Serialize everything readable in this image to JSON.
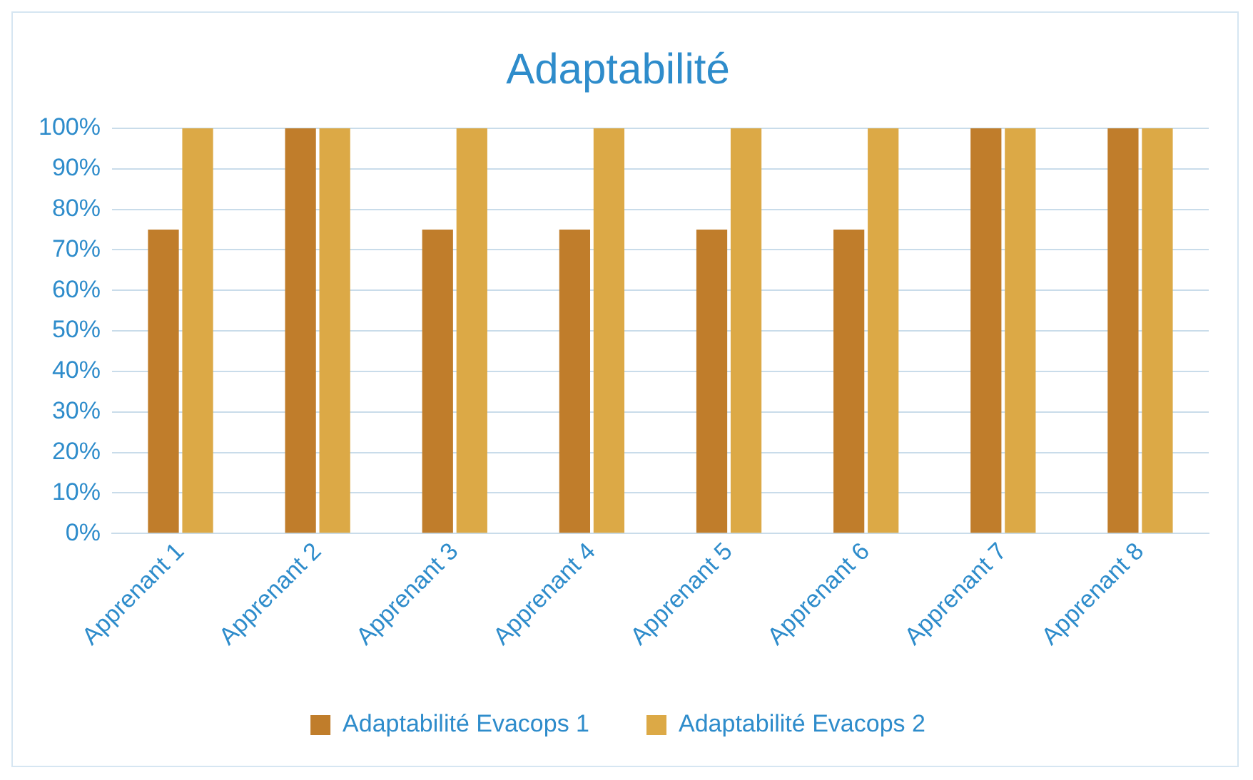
{
  "chart_data": {
    "type": "bar",
    "title": "Adaptabilité",
    "categories": [
      "Apprenant 1",
      "Apprenant 2",
      "Apprenant 3",
      "Apprenant 4",
      "Apprenant 5",
      "Apprenant 6",
      "Apprenant 7",
      "Apprenant 8"
    ],
    "series": [
      {
        "name": "Adaptabilité Evacops 1",
        "color": "#c07d2b",
        "values": [
          75,
          100,
          75,
          75,
          75,
          75,
          100,
          100
        ]
      },
      {
        "name": "Adaptabilité Evacops 2",
        "color": "#dca946",
        "values": [
          100,
          100,
          100,
          100,
          100,
          100,
          100,
          100
        ]
      }
    ],
    "ylim": [
      0,
      100
    ],
    "yticks": [
      {
        "value": 0,
        "label": "0%"
      },
      {
        "value": 10,
        "label": "10%"
      },
      {
        "value": 20,
        "label": "20%"
      },
      {
        "value": 30,
        "label": "30%"
      },
      {
        "value": 40,
        "label": "40%"
      },
      {
        "value": 50,
        "label": "50%"
      },
      {
        "value": 60,
        "label": "60%"
      },
      {
        "value": 70,
        "label": "70%"
      },
      {
        "value": 80,
        "label": "80%"
      },
      {
        "value": 90,
        "label": "90%"
      },
      {
        "value": 100,
        "label": "100%"
      }
    ],
    "grid": "y",
    "legend": "bottom"
  }
}
